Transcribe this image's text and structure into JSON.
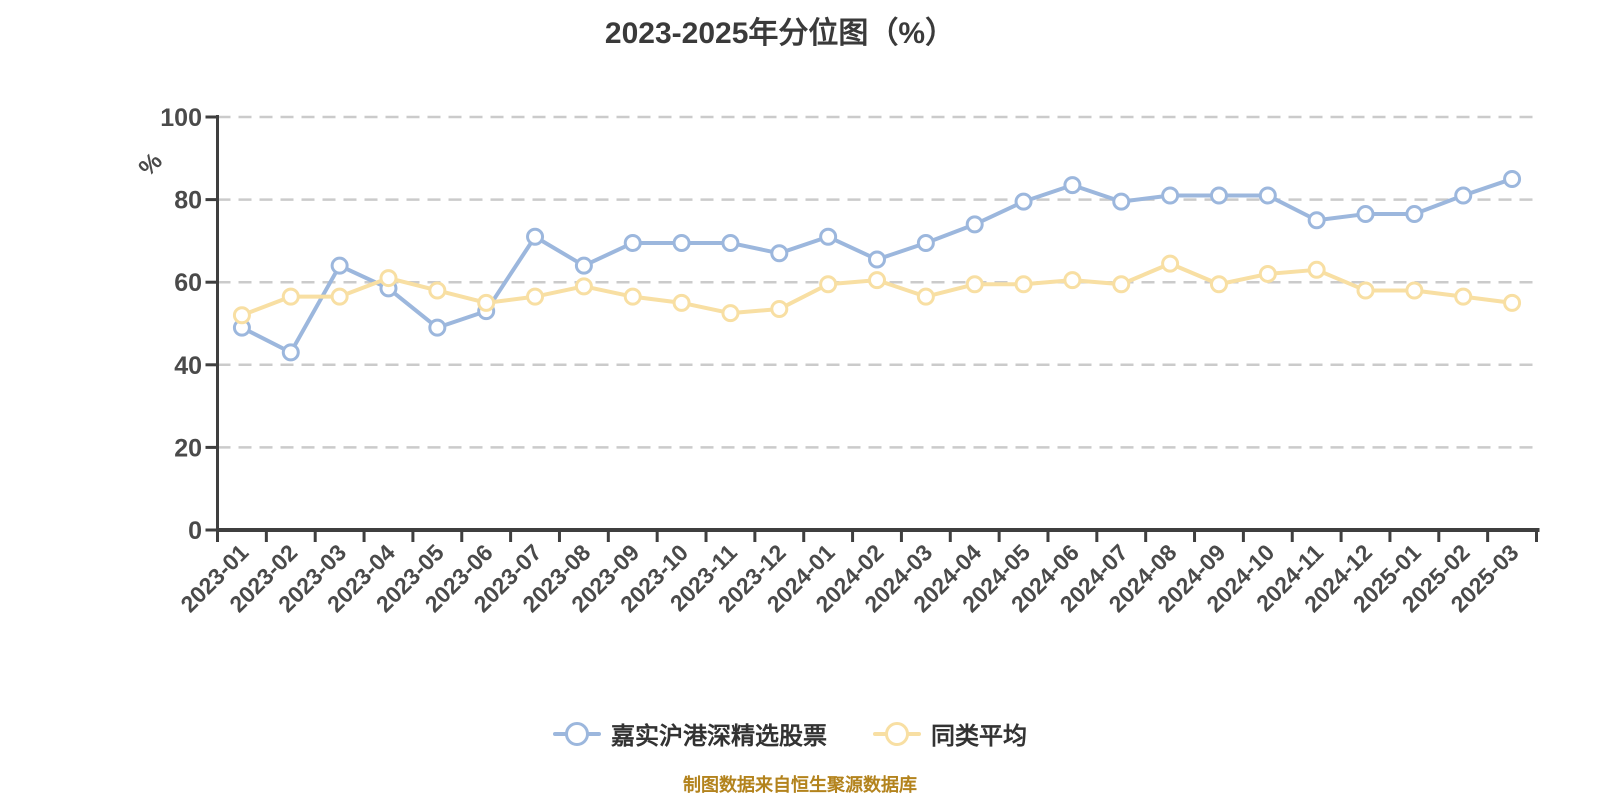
{
  "chart_data": {
    "type": "line",
    "title": "2023-2025年分位图（%）",
    "unit_label": {
      "text": "%",
      "color": "#E60000"
    },
    "categories": [
      "2023-01",
      "2023-02",
      "2023-03",
      "2023-04",
      "2023-05",
      "2023-06",
      "2023-07",
      "2023-08",
      "2023-09",
      "2023-10",
      "2023-11",
      "2023-12",
      "2024-01",
      "2024-02",
      "2024-03",
      "2024-04",
      "2024-05",
      "2024-06",
      "2024-07",
      "2024-08",
      "2024-09",
      "2024-10",
      "2024-11",
      "2024-12",
      "2025-01",
      "2025-02",
      "2025-03"
    ],
    "series": [
      {
        "name": "嘉实沪港深精选股票",
        "color": "#9CB7DD",
        "marker_fill": "#FFFFFF",
        "values": [
          49,
          43,
          64,
          58.5,
          49,
          53,
          71,
          64,
          69.5,
          69.5,
          69.5,
          67,
          71,
          65.5,
          69.5,
          74,
          79.5,
          83.5,
          79.5,
          81,
          81,
          81,
          75,
          76.5,
          76.5,
          81,
          85
        ]
      },
      {
        "name": "同类平均",
        "color": "#F8DFA3",
        "marker_fill": "#FFFFFF",
        "values": [
          52,
          56.5,
          56.5,
          61,
          58,
          55,
          56.5,
          59,
          56.5,
          55,
          52.5,
          53.5,
          59.5,
          60.5,
          56.5,
          59.5,
          59.5,
          60.5,
          59.5,
          64.5,
          59.5,
          62,
          63,
          58,
          58,
          56.5,
          55
        ]
      }
    ],
    "ylim": [
      0,
      100
    ],
    "yticks": [
      0,
      20,
      40,
      60,
      80,
      100
    ],
    "grid": {
      "style": "dashed",
      "color": "#CBCBCB",
      "direction": "horizontal"
    },
    "axis_color": "#3F3F3F",
    "label_color": "#4A4A4A",
    "x_label_rotation": 45,
    "legend_position": "bottom"
  },
  "footer": {
    "caption": "制图数据来自恒生聚源数据库",
    "color": "#B3831D"
  }
}
